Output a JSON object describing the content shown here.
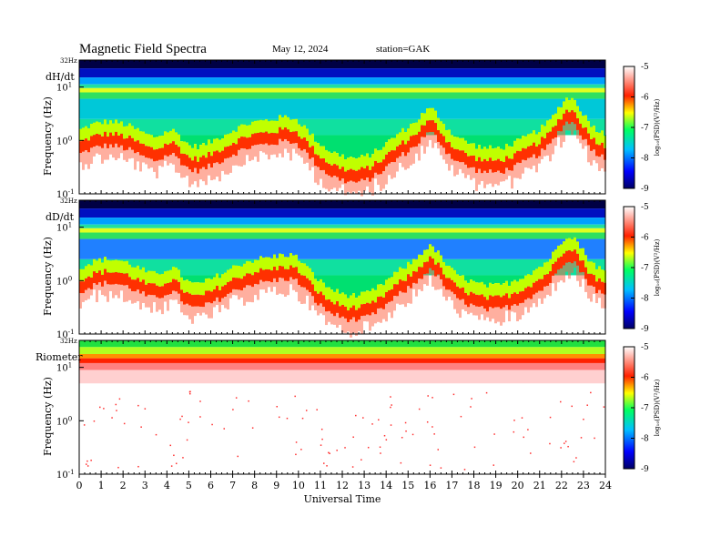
{
  "header": {
    "title": "Magnetic Field Spectra",
    "date": "May 12, 2024",
    "station": "station=GAK"
  },
  "chart_data": {
    "type": "heatmap",
    "x": {
      "label": "Universal Time",
      "range": [
        0,
        24
      ],
      "ticks": [
        "0",
        "1",
        "2",
        "3",
        "4",
        "5",
        "6",
        "7",
        "8",
        "9",
        "10",
        "11",
        "12",
        "13",
        "14",
        "15",
        "16",
        "17",
        "18",
        "19",
        "20",
        "21",
        "22",
        "23",
        "24"
      ]
    },
    "y_scale": "log",
    "colorbar": {
      "label": "log₁₀(PSD)(V²/Hz)",
      "range": [
        -9,
        -5
      ],
      "ticks": [
        "-5",
        "-6",
        "-7",
        "-8",
        "-9"
      ],
      "colors": [
        "#000066",
        "#0000ff",
        "#00c0ff",
        "#00ff60",
        "#ffff00",
        "#ff2000",
        "#ffffff"
      ]
    },
    "panels": [
      {
        "name": "dH/dt",
        "ylabel": "Frequency (Hz)",
        "yticks": [
          {
            "label": "10¹",
            "base": "10",
            "exp": "1"
          },
          {
            "label": "10⁰",
            "base": "10",
            "exp": "0"
          },
          {
            "label": "10⁻¹",
            "base": "10",
            "exp": "-1"
          }
        ],
        "ymax_label": "32Hz"
      },
      {
        "name": "dD/dt",
        "ylabel": "Frequency (Hz)",
        "yticks": [
          {
            "label": "10¹",
            "base": "10",
            "exp": "1"
          },
          {
            "label": "10⁰",
            "base": "10",
            "exp": "0"
          },
          {
            "label": "10⁻¹",
            "base": "10",
            "exp": "-1"
          }
        ],
        "ymax_label": "32Hz"
      },
      {
        "name": "Riometer",
        "ylabel": "Frequency (Hz)",
        "yticks": [
          {
            "label": "10¹",
            "base": "10",
            "exp": "1"
          },
          {
            "label": "10⁰",
            "base": "10",
            "exp": "0"
          },
          {
            "label": "10⁻¹",
            "base": "10",
            "exp": "-1"
          }
        ],
        "ymax_label": "32Hz"
      }
    ]
  }
}
